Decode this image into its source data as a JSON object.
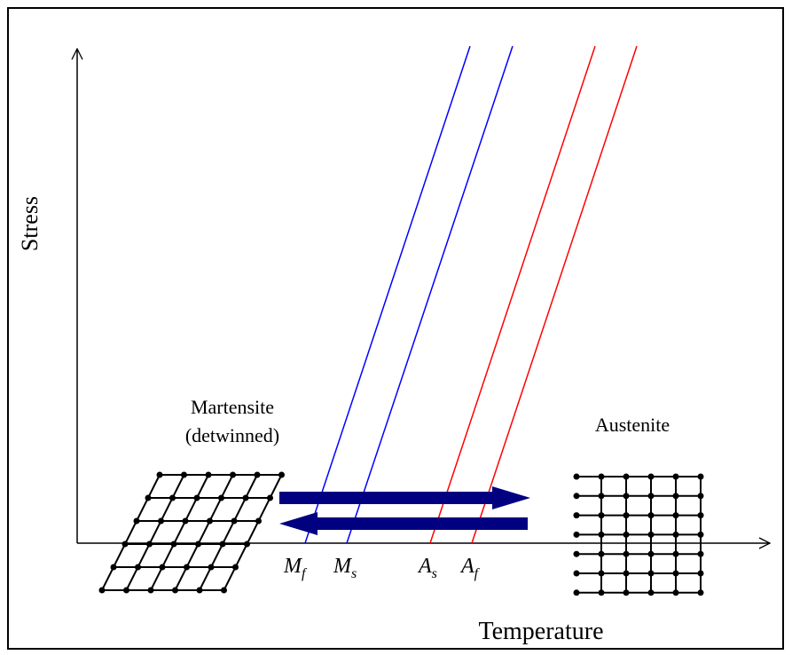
{
  "axes": {
    "y_label": "Stress",
    "x_label": "Temperature"
  },
  "phases": {
    "martensite": {
      "name": "Martensite",
      "note": "(detwinned)"
    },
    "austenite": {
      "name": "Austenite"
    }
  },
  "lines": [
    {
      "main": "M",
      "sub": "f"
    },
    {
      "main": "M",
      "sub": "s"
    },
    {
      "main": "A",
      "sub": "s"
    },
    {
      "main": "A",
      "sub": "f"
    }
  ]
}
